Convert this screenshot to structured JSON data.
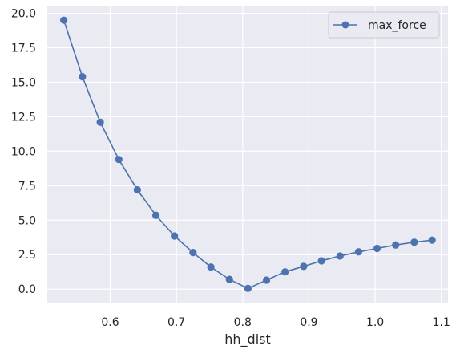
{
  "chart_data": {
    "type": "line",
    "xlabel": "hh_dist",
    "ylabel": "",
    "xlim": [
      0.505,
      1.11
    ],
    "ylim": [
      -0.98,
      20.5
    ],
    "x_ticks": [
      0.6,
      0.7,
      0.8,
      0.9,
      1.0,
      1.1
    ],
    "x_tick_labels": [
      "0.6",
      "0.7",
      "0.8",
      "0.9",
      "1.0",
      "1.1"
    ],
    "y_ticks": [
      0.0,
      2.5,
      5.0,
      7.5,
      10.0,
      12.5,
      15.0,
      17.5,
      20.0
    ],
    "y_tick_labels": [
      "0.0",
      "2.5",
      "5.0",
      "7.5",
      "10.0",
      "12.5",
      "15.0",
      "17.5",
      "20.0"
    ],
    "grid": true,
    "legend_position": "top-right",
    "series": [
      {
        "name": "max_force",
        "color": "#4c72b0",
        "marker": "circle",
        "x": [
          0.53,
          0.558,
          0.585,
          0.613,
          0.641,
          0.669,
          0.697,
          0.725,
          0.752,
          0.78,
          0.808,
          0.836,
          0.864,
          0.892,
          0.919,
          0.947,
          0.975,
          1.003,
          1.031,
          1.059,
          1.086
        ],
        "y": [
          19.5,
          15.4,
          12.1,
          9.4,
          7.2,
          5.35,
          3.85,
          2.65,
          1.6,
          0.7,
          0.05,
          0.65,
          1.25,
          1.65,
          2.05,
          2.4,
          2.7,
          2.95,
          3.2,
          3.4,
          3.55
        ]
      }
    ]
  }
}
